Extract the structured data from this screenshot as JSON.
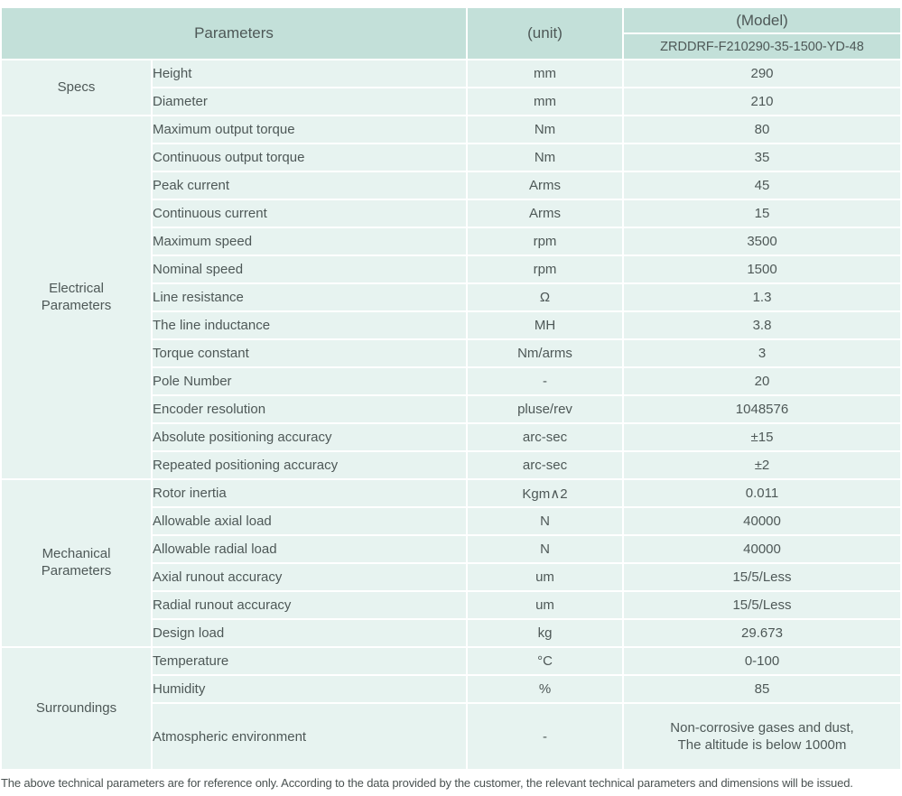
{
  "header": {
    "parameters_label": "Parameters",
    "unit_label": "(unit)",
    "model_label": "(Model)",
    "model_value": "ZRDDRF-F210290-35-1500-YD-48"
  },
  "groups": [
    {
      "label": "Specs",
      "label2": "",
      "rows": [
        {
          "param": "Height",
          "unit": "mm",
          "value": "290"
        },
        {
          "param": "Diameter",
          "unit": "mm",
          "value": "210"
        }
      ]
    },
    {
      "label": "Electrical",
      "label2": "Parameters",
      "rows": [
        {
          "param": "Maximum output torque",
          "unit": "Nm",
          "value": "80"
        },
        {
          "param": "Continuous output torque",
          "unit": "Nm",
          "value": "35"
        },
        {
          "param": "Peak current",
          "unit": "Arms",
          "value": "45"
        },
        {
          "param": "Continuous current",
          "unit": "Arms",
          "value": "15"
        },
        {
          "param": "Maximum speed",
          "unit": "rpm",
          "value": "3500"
        },
        {
          "param": "Nominal speed",
          "unit": "rpm",
          "value": "1500"
        },
        {
          "param": "Line resistance",
          "unit": "Ω",
          "value": "1.3"
        },
        {
          "param": "The line inductance",
          "unit": "MH",
          "value": "3.8"
        },
        {
          "param": "Torque constant",
          "unit": "Nm/arms",
          "value": "3"
        },
        {
          "param": "Pole Number",
          "unit": "-",
          "value": "20"
        },
        {
          "param": "Encoder resolution",
          "unit": "pluse/rev",
          "value": "1048576"
        },
        {
          "param": "Absolute positioning accuracy",
          "unit": "arc-sec",
          "value": "±15"
        },
        {
          "param": "Repeated positioning accuracy",
          "unit": "arc-sec",
          "value": "±2"
        }
      ]
    },
    {
      "label": "Mechanical",
      "label2": "Parameters",
      "rows": [
        {
          "param": "Rotor inertia",
          "unit": "Kgm∧2",
          "value": "0.011"
        },
        {
          "param": "Allowable axial load",
          "unit": "N",
          "value": "40000"
        },
        {
          "param": "Allowable radial load",
          "unit": "N",
          "value": "40000"
        },
        {
          "param": "Axial runout accuracy",
          "unit": "um",
          "value": "15/5/Less"
        },
        {
          "param": "Radial runout accuracy",
          "unit": "um",
          "value": "15/5/Less"
        },
        {
          "param": "Design load",
          "unit": "kg",
          "value": "29.673"
        }
      ]
    },
    {
      "label": "Surroundings",
      "label2": "",
      "rows": [
        {
          "param": "Temperature",
          "unit": "°C",
          "value": "0-100"
        },
        {
          "param": "Humidity",
          "unit": "%",
          "value": "85"
        },
        {
          "param": "Atmospheric environment",
          "unit": "-",
          "value": "Non-corrosive gases and dust,",
          "value2": "The altitude is below 1000m"
        }
      ]
    }
  ],
  "footer": {
    "note": "The above technical parameters are for reference only. According to the data provided by the customer, the relevant technical parameters and dimensions will be issued."
  },
  "colors": {
    "header_bg": "#c3e0d9",
    "cell_bg": "#e7f3f0",
    "text": "#4e5857"
  }
}
